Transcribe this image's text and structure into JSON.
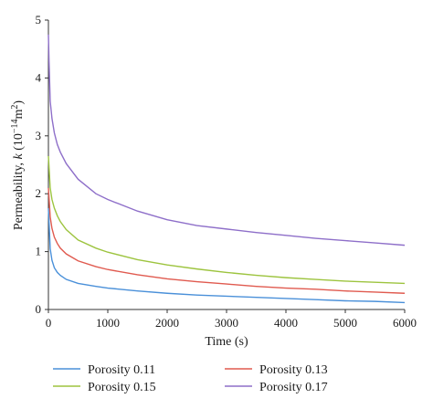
{
  "chart_data": {
    "type": "line",
    "xlabel": "Time (s)",
    "ylabel": {
      "prefix": "Permeability, ",
      "var": "k",
      "open": " (10",
      "exp": "−14",
      "unit": "m",
      "unit_exp": "2",
      "close": ")"
    },
    "xlim": [
      0,
      6000
    ],
    "ylim": [
      0,
      5
    ],
    "xticks": [
      "0",
      "1000",
      "2000",
      "3000",
      "4000",
      "5000",
      "6000"
    ],
    "yticks": [
      "0",
      "1",
      "2",
      "3",
      "4",
      "5"
    ],
    "grid": false,
    "legend_position": "bottom",
    "series": [
      {
        "name": "Porosity 0.11",
        "color": "#4a90d9",
        "x": [
          0,
          30,
          60,
          100,
          150,
          200,
          300,
          500,
          800,
          1000,
          1500,
          2000,
          2500,
          3000,
          3500,
          4000,
          4500,
          5000,
          5500,
          6000
        ],
        "y": [
          1.75,
          1.05,
          0.85,
          0.72,
          0.64,
          0.59,
          0.52,
          0.45,
          0.4,
          0.37,
          0.32,
          0.28,
          0.25,
          0.23,
          0.21,
          0.19,
          0.17,
          0.15,
          0.14,
          0.12
        ]
      },
      {
        "name": "Porosity 0.13",
        "color": "#e05a4f",
        "x": [
          0,
          30,
          60,
          100,
          150,
          200,
          300,
          500,
          800,
          1000,
          1500,
          2000,
          2500,
          3000,
          3500,
          4000,
          4500,
          5000,
          5500,
          6000
        ],
        "y": [
          2.1,
          1.6,
          1.4,
          1.25,
          1.14,
          1.06,
          0.96,
          0.84,
          0.74,
          0.69,
          0.6,
          0.53,
          0.48,
          0.44,
          0.4,
          0.37,
          0.35,
          0.32,
          0.3,
          0.28
        ]
      },
      {
        "name": "Porosity 0.15",
        "color": "#9dc43f",
        "x": [
          0,
          30,
          60,
          100,
          150,
          200,
          300,
          500,
          800,
          1000,
          1500,
          2000,
          2500,
          3000,
          3500,
          4000,
          4500,
          5000,
          5500,
          6000
        ],
        "y": [
          2.65,
          2.1,
          1.9,
          1.75,
          1.62,
          1.52,
          1.38,
          1.2,
          1.06,
          0.99,
          0.86,
          0.77,
          0.7,
          0.64,
          0.59,
          0.55,
          0.52,
          0.49,
          0.47,
          0.45
        ]
      },
      {
        "name": "Porosity 0.17",
        "color": "#8e6fc9",
        "x": [
          0,
          10,
          30,
          60,
          100,
          150,
          200,
          300,
          500,
          800,
          1000,
          1500,
          2000,
          2500,
          3000,
          3500,
          4000,
          4500,
          5000,
          5500,
          6000
        ],
        "y": [
          4.75,
          4.3,
          3.6,
          3.3,
          3.05,
          2.85,
          2.72,
          2.52,
          2.25,
          2.0,
          1.9,
          1.7,
          1.55,
          1.45,
          1.39,
          1.33,
          1.28,
          1.23,
          1.19,
          1.15,
          1.11
        ]
      }
    ]
  }
}
